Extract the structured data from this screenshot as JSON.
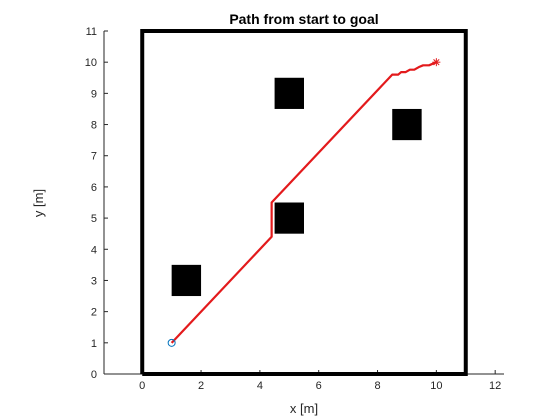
{
  "chart_data": {
    "type": "line",
    "title": "Path from start to goal",
    "xlabel": "x [m]",
    "ylabel": "y [m]",
    "xlim": [
      -1.3,
      12.3
    ],
    "ylim": [
      0,
      11
    ],
    "xticks": [
      0,
      2,
      4,
      6,
      8,
      10,
      12
    ],
    "yticks": [
      0,
      1,
      2,
      3,
      4,
      5,
      6,
      7,
      8,
      9,
      10,
      11
    ],
    "grid": false,
    "colors": {
      "path": "#e31a1c",
      "start": "#0072bd",
      "goal": "#e31a1c",
      "obstacle": "#000000",
      "boundary": "#000000",
      "axes": "#262626"
    },
    "boundary": {
      "x": [
        0,
        11,
        11,
        0,
        0
      ],
      "y": [
        0,
        0,
        11,
        11,
        0
      ]
    },
    "obstacles": [
      {
        "x": 1.5,
        "y": 3,
        "size": 1
      },
      {
        "x": 5,
        "y": 9,
        "size": 1
      },
      {
        "x": 5,
        "y": 5,
        "size": 1
      },
      {
        "x": 9,
        "y": 8,
        "size": 1
      }
    ],
    "path": {
      "x": [
        1,
        4.4,
        4.4,
        8.5,
        8.7,
        8.8,
        8.95,
        9.1,
        9.25,
        9.4,
        9.55,
        9.75,
        10
      ],
      "y": [
        1,
        4.4,
        5.5,
        9.6,
        9.6,
        9.68,
        9.68,
        9.76,
        9.76,
        9.84,
        9.9,
        9.9,
        10
      ]
    },
    "start": {
      "x": 1,
      "y": 1
    },
    "goal": {
      "x": 10,
      "y": 10
    }
  }
}
